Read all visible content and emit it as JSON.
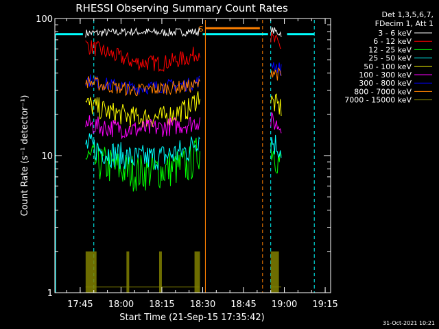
{
  "chart_data": {
    "type": "line",
    "title": "RHESSI Observing Summary Count Rates",
    "xlabel": "Start Time (21-Sep-15 17:35:42)",
    "ylabel": "Count Rate (s⁻¹ detector⁻¹)",
    "y_scale": "log",
    "ylim": [
      1,
      100
    ],
    "y_ticks": [
      {
        "value": 1,
        "label": "1"
      },
      {
        "value": 10,
        "label": "10"
      },
      {
        "value": 100,
        "label": "100"
      }
    ],
    "xlim": [
      "17:35:42",
      "19:17:00"
    ],
    "x_ticks": [
      "17:45",
      "18:00",
      "18:15",
      "18:30",
      "18:45",
      "19:00",
      "19:15"
    ],
    "legend_header": [
      "Det 1,3,5,6,7,",
      "FDecim 1, Att 1"
    ],
    "legend_position": "right",
    "timestamp": "31-Oct-2021 10:21",
    "series": [
      {
        "name": "3 - 6 keV",
        "color": "#ffffff",
        "x": [
          "17:47",
          "17:55",
          "18:05",
          "18:15",
          "18:25",
          "18:29",
          "18:55",
          "18:59"
        ],
        "values": [
          78,
          79,
          80,
          79,
          80,
          80,
          82,
          78
        ]
      },
      {
        "name": "6 - 12 keV",
        "color": "#ff0000",
        "x": [
          "17:47",
          "17:55",
          "18:05",
          "18:15",
          "18:25",
          "18:29",
          "18:55",
          "18:59"
        ],
        "values": [
          64,
          56,
          48,
          47,
          52,
          58,
          72,
          62
        ]
      },
      {
        "name": "12 - 25 keV",
        "color": "#00ff00",
        "x": [
          "17:47",
          "17:55",
          "18:05",
          "18:15",
          "18:25",
          "18:29",
          "18:55",
          "18:59"
        ],
        "values": [
          9.5,
          8.5,
          7.5,
          7.8,
          8.5,
          11,
          12,
          8.5
        ]
      },
      {
        "name": "25 - 50 keV",
        "color": "#00ffff",
        "x": [
          "17:47",
          "17:55",
          "18:05",
          "18:15",
          "18:25",
          "18:29",
          "18:55",
          "18:59"
        ],
        "values": [
          12,
          10.5,
          9.5,
          9.8,
          11,
          14,
          13,
          11
        ]
      },
      {
        "name": "50 - 100 keV",
        "color": "#ffff00",
        "x": [
          "17:47",
          "17:55",
          "18:05",
          "18:15",
          "18:25",
          "18:29",
          "18:55",
          "18:59"
        ],
        "values": [
          24,
          21,
          19,
          19,
          22,
          28,
          25,
          22
        ]
      },
      {
        "name": "100 - 300 keV",
        "color": "#ff00ff",
        "x": [
          "17:47",
          "17:55",
          "18:05",
          "18:15",
          "18:25",
          "18:29",
          "18:55",
          "18:59"
        ],
        "values": [
          17,
          16,
          15.5,
          16,
          17,
          18,
          18,
          16
        ]
      },
      {
        "name": "300 - 800 keV",
        "color": "#0000ff",
        "x": [
          "17:47",
          "17:55",
          "18:05",
          "18:15",
          "18:25",
          "18:29",
          "18:55",
          "18:59"
        ],
        "values": [
          36,
          33,
          31,
          32,
          33,
          35,
          48,
          42
        ]
      },
      {
        "name": "800 - 7000 keV",
        "color": "#ff8000",
        "x": [
          "17:47",
          "17:55",
          "18:05",
          "18:15",
          "18:25",
          "18:29",
          "18:55",
          "18:59"
        ],
        "values": [
          35,
          32,
          30,
          31,
          32,
          33,
          42,
          38
        ]
      },
      {
        "name": "7000 - 15000 keV",
        "color": "#808000",
        "x": [
          "17:47",
          "17:55",
          "18:05",
          "18:15",
          "18:25",
          "18:29",
          "18:55",
          "18:59"
        ],
        "values": [
          1.1,
          1.1,
          1.1,
          1.1,
          1.1,
          1.1,
          1.1,
          1.1
        ]
      }
    ],
    "flags": [
      {
        "name": "attenuator-level",
        "color": "#00ffff",
        "x": [
          "17:36",
          "17:46",
          "18:30",
          "18:54",
          "19:01",
          "19:11"
        ],
        "values": [
          77,
          77,
          77,
          77,
          77,
          77
        ]
      },
      {
        "name": "saa-bar",
        "color": "#ff8000",
        "x": [
          "18:31",
          "18:51"
        ],
        "values": [
          85,
          85
        ],
        "label": "S"
      }
    ],
    "markers": [
      {
        "x": "17:50",
        "color": "#00ffff",
        "style": "dashed"
      },
      {
        "x": "18:52",
        "color": "#ff8000",
        "style": "dashed"
      },
      {
        "x": "18:55",
        "color": "#00ffff",
        "style": "dashed"
      },
      {
        "x": "19:11",
        "color": "#00ffff",
        "style": "dashed"
      },
      {
        "x": "18:31",
        "color": "#ff8000",
        "style": "solid"
      }
    ]
  }
}
